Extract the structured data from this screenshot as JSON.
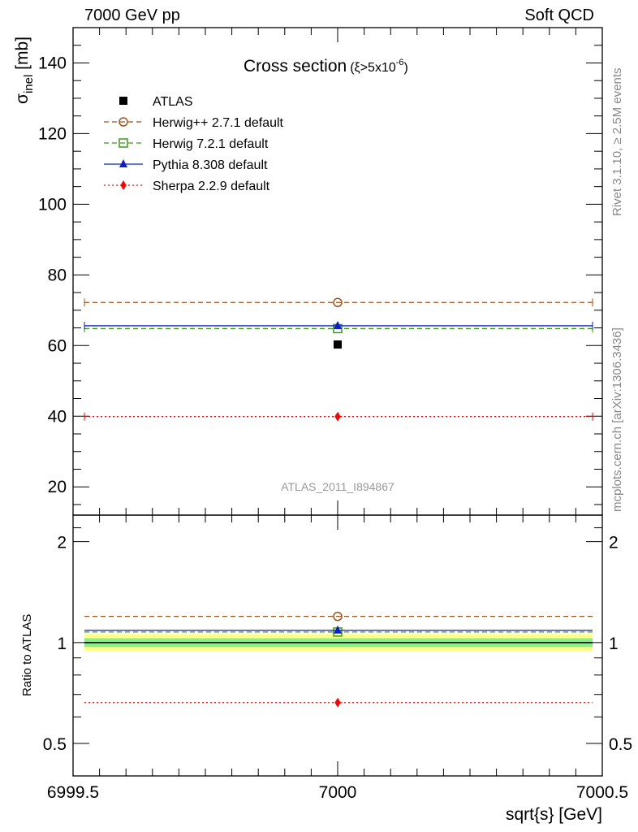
{
  "header": {
    "left": "7000 GeV pp",
    "right": "Soft QCD"
  },
  "side_labels": {
    "top": "Rivet 3.1.10, ≥ 2.5M events",
    "bottom": "mcplots.cern.ch [arXiv:1306.3436]"
  },
  "chart_data": {
    "type": "scatter",
    "title": "Cross section",
    "title_suffix": "(ξ>5x10",
    "title_exponent": "-6",
    "title_close": ")",
    "analysis_label": "ATLAS_2011_I894867",
    "xlabel": "sqrt{s} [GeV]",
    "ylabel_main": "σ",
    "ylabel_sub": "inel",
    "ylabel_unit": " [mb]",
    "ratio_ylabel": "Ratio to ATLAS",
    "xlim": [
      6999.5,
      7000.5
    ],
    "xticks": [
      "6999.5",
      "7000",
      "7000.5"
    ],
    "main_ylim": [
      12,
      150
    ],
    "main_yticks": [
      "20",
      "40",
      "60",
      "80",
      "100",
      "120",
      "140"
    ],
    "ratio_ylim": [
      0.4,
      2.4
    ],
    "ratio_yticks": [
      "0.5",
      "1",
      "2"
    ],
    "ratio_band": {
      "inner": [
        0.97,
        1.03
      ],
      "outer": [
        0.94,
        1.06
      ]
    },
    "data": {
      "name": "ATLAS",
      "x": 7000,
      "y": 60.3,
      "color": "#000000"
    },
    "series": [
      {
        "name": "Herwig++ 2.7.1 default",
        "x": 7000,
        "y": 72.2,
        "ratio": 1.197,
        "color": "#a0521b",
        "dash": "6,4",
        "marker": "circle"
      },
      {
        "name": "Herwig 7.2.1 default",
        "x": 7000,
        "y": 64.8,
        "ratio": 1.075,
        "color": "#3b9a1c",
        "dash": "6,4",
        "marker": "square"
      },
      {
        "name": "Pythia 8.308 default",
        "x": 7000,
        "y": 65.6,
        "ratio": 1.088,
        "color": "#0b20c8",
        "dash": "",
        "marker": "triangle"
      },
      {
        "name": "Sherpa 2.2.9 default",
        "x": 7000,
        "y": 39.9,
        "ratio": 0.662,
        "color": "#ff0000",
        "dash": "2,3",
        "marker": "diamond"
      }
    ]
  }
}
